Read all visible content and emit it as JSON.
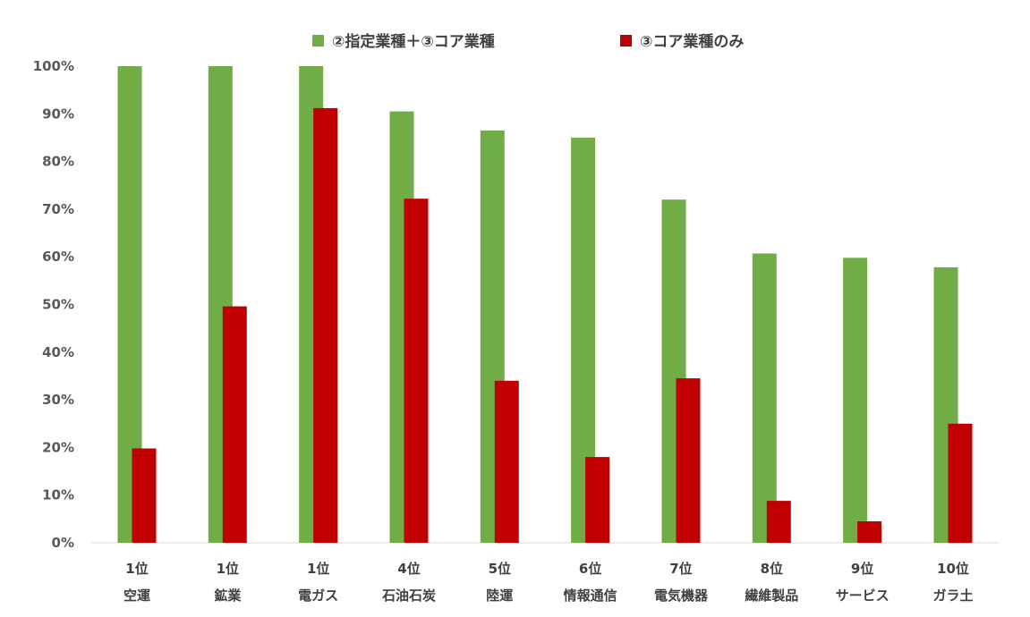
{
  "chart_data": {
    "type": "bar",
    "title": "",
    "xlabel": "",
    "ylabel": "",
    "ylim": [
      0,
      100
    ],
    "y_ticks": [
      "0%",
      "10%",
      "20%",
      "30%",
      "40%",
      "50%",
      "60%",
      "70%",
      "80%",
      "90%",
      "100%"
    ],
    "grid": false,
    "legend_position": "top",
    "categories": [
      {
        "rank": "1位",
        "name": "空運"
      },
      {
        "rank": "1位",
        "name": "鉱業"
      },
      {
        "rank": "1位",
        "name": "電ガス"
      },
      {
        "rank": "4位",
        "name": "石油石炭"
      },
      {
        "rank": "5位",
        "name": "陸運"
      },
      {
        "rank": "6位",
        "name": "情報通信"
      },
      {
        "rank": "7位",
        "name": "電気機器"
      },
      {
        "rank": "8位",
        "name": "繊維製品"
      },
      {
        "rank": "9位",
        "name": "サービス"
      },
      {
        "rank": "10位",
        "name": "ガラ土"
      }
    ],
    "series": [
      {
        "name": "②指定業種＋③コア業種",
        "color": "#70AD47",
        "values": [
          100,
          100,
          100,
          90.5,
          86.5,
          85,
          72,
          60.7,
          59.8,
          57.8
        ]
      },
      {
        "name": "③コア業種のみ",
        "color": "#C00000",
        "values": [
          19.8,
          49.6,
          91.2,
          72.2,
          34,
          18,
          34.5,
          8.8,
          4.5,
          25
        ]
      }
    ]
  }
}
